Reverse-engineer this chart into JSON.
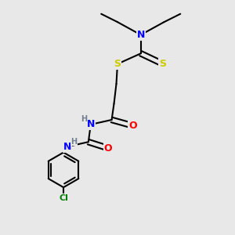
{
  "background_color": "#e8e8e8",
  "colors": {
    "N": "#0000ff",
    "S": "#cccc00",
    "O": "#ff0000",
    "Cl": "#008000",
    "C": "#000000",
    "H": "#708090",
    "bond": "#000000"
  },
  "figsize": [
    3.0,
    3.0
  ],
  "dpi": 100
}
